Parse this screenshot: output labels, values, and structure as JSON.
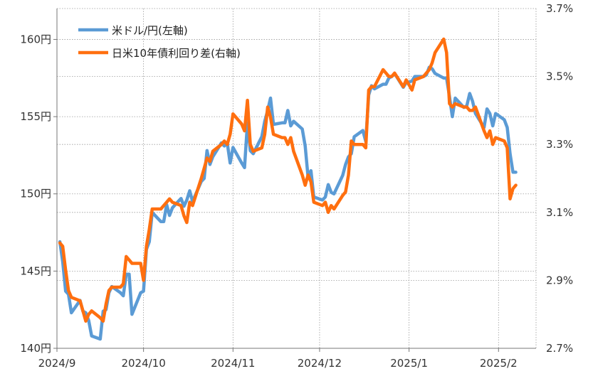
{
  "chart_data": {
    "type": "line",
    "title": "",
    "xlabel": "",
    "x_tick_labels": [
      "2024/9",
      "2024/10",
      "2024/11",
      "2024/12",
      "2025/1",
      "2025/2"
    ],
    "x_tick_dates": [
      "2024-09-01",
      "2024-10-01",
      "2024-11-01",
      "2024-12-01",
      "2025-01-01",
      "2025-02-01"
    ],
    "xlim": [
      "2024-09-01",
      "2025-02-14"
    ],
    "left_axis": {
      "ylim": [
        140,
        162
      ],
      "tick_values": [
        140,
        145,
        150,
        155,
        160
      ],
      "tick_labels": [
        "140円",
        "145円",
        "150円",
        "155円",
        "160円"
      ]
    },
    "right_axis": {
      "ylim": [
        2.7,
        3.7
      ],
      "tick_values": [
        2.7,
        2.9,
        3.1,
        3.3,
        3.5,
        3.7
      ],
      "tick_labels": [
        "2.7%",
        "2.9%",
        "3.1%",
        "3.3%",
        "3.5%",
        "3.7%"
      ]
    },
    "grid": true,
    "legend_position": "top-left",
    "series": [
      {
        "name": "米ドル/円(左軸)",
        "axis": "left",
        "color": "#5b9bd5",
        "points": [
          [
            "2024-09-02",
            146.9
          ],
          [
            "2024-09-03",
            145.6
          ],
          [
            "2024-09-04",
            143.7
          ],
          [
            "2024-09-05",
            143.5
          ],
          [
            "2024-09-06",
            142.3
          ],
          [
            "2024-09-09",
            143.1
          ],
          [
            "2024-09-10",
            142.4
          ],
          [
            "2024-09-11",
            142.3
          ],
          [
            "2024-09-12",
            141.8
          ],
          [
            "2024-09-13",
            140.8
          ],
          [
            "2024-09-16",
            140.6
          ],
          [
            "2024-09-17",
            142.4
          ],
          [
            "2024-09-18",
            142.5
          ],
          [
            "2024-09-19",
            143.6
          ],
          [
            "2024-09-20",
            144.0
          ],
          [
            "2024-09-23",
            143.6
          ],
          [
            "2024-09-24",
            143.4
          ],
          [
            "2024-09-25",
            144.8
          ],
          [
            "2024-09-26",
            144.8
          ],
          [
            "2024-09-27",
            142.2
          ],
          [
            "2024-09-30",
            143.6
          ],
          [
            "2024-10-01",
            143.7
          ],
          [
            "2024-10-02",
            146.4
          ],
          [
            "2024-10-03",
            146.9
          ],
          [
            "2024-10-04",
            148.8
          ],
          [
            "2024-10-07",
            148.2
          ],
          [
            "2024-10-08",
            148.2
          ],
          [
            "2024-10-09",
            149.3
          ],
          [
            "2024-10-10",
            148.6
          ],
          [
            "2024-10-11",
            149.1
          ],
          [
            "2024-10-14",
            149.7
          ],
          [
            "2024-10-15",
            149.2
          ],
          [
            "2024-10-16",
            149.6
          ],
          [
            "2024-10-17",
            150.2
          ],
          [
            "2024-10-18",
            149.5
          ],
          [
            "2024-10-21",
            150.8
          ],
          [
            "2024-10-22",
            151.0
          ],
          [
            "2024-10-23",
            152.8
          ],
          [
            "2024-10-24",
            151.9
          ],
          [
            "2024-10-25",
            152.4
          ],
          [
            "2024-10-28",
            153.3
          ],
          [
            "2024-10-29",
            153.1
          ],
          [
            "2024-10-30",
            153.3
          ],
          [
            "2024-10-31",
            152.0
          ],
          [
            "2024-11-01",
            153.0
          ],
          [
            "2024-11-04",
            152.0
          ],
          [
            "2024-11-05",
            151.7
          ],
          [
            "2024-11-06",
            154.6
          ],
          [
            "2024-11-07",
            152.8
          ],
          [
            "2024-11-08",
            152.6
          ],
          [
            "2024-11-11",
            153.7
          ],
          [
            "2024-11-12",
            154.7
          ],
          [
            "2024-11-13",
            155.4
          ],
          [
            "2024-11-14",
            156.2
          ],
          [
            "2024-11-15",
            154.5
          ],
          [
            "2024-11-18",
            154.6
          ],
          [
            "2024-11-19",
            154.6
          ],
          [
            "2024-11-20",
            155.4
          ],
          [
            "2024-11-21",
            154.4
          ],
          [
            "2024-11-22",
            154.7
          ],
          [
            "2024-11-25",
            154.2
          ],
          [
            "2024-11-26",
            153.1
          ],
          [
            "2024-11-27",
            151.1
          ],
          [
            "2024-11-28",
            151.5
          ],
          [
            "2024-11-29",
            149.8
          ],
          [
            "2024-12-02",
            149.6
          ],
          [
            "2024-12-03",
            149.8
          ],
          [
            "2024-12-04",
            150.6
          ],
          [
            "2024-12-05",
            150.1
          ],
          [
            "2024-12-06",
            150.0
          ],
          [
            "2024-12-09",
            151.2
          ],
          [
            "2024-12-10",
            151.9
          ],
          [
            "2024-12-11",
            152.4
          ],
          [
            "2024-12-12",
            152.6
          ],
          [
            "2024-12-13",
            153.7
          ],
          [
            "2024-12-16",
            154.1
          ],
          [
            "2024-12-17",
            153.4
          ],
          [
            "2024-12-18",
            156.4
          ],
          [
            "2024-12-19",
            157.0
          ],
          [
            "2024-12-20",
            156.8
          ],
          [
            "2024-12-23",
            157.1
          ],
          [
            "2024-12-24",
            157.1
          ],
          [
            "2024-12-25",
            157.5
          ],
          [
            "2024-12-26",
            157.6
          ],
          [
            "2024-12-27",
            157.8
          ],
          [
            "2024-12-30",
            156.9
          ],
          [
            "2024-12-31",
            157.2
          ],
          [
            "2025-01-02",
            157.3
          ],
          [
            "2025-01-03",
            157.6
          ],
          [
            "2025-01-06",
            157.6
          ],
          [
            "2025-01-07",
            157.7
          ],
          [
            "2025-01-08",
            158.2
          ],
          [
            "2025-01-09",
            158.1
          ],
          [
            "2025-01-10",
            157.8
          ],
          [
            "2025-01-13",
            157.5
          ],
          [
            "2025-01-14",
            157.5
          ],
          [
            "2025-01-15",
            156.3
          ],
          [
            "2025-01-16",
            155.0
          ],
          [
            "2025-01-17",
            156.2
          ],
          [
            "2025-01-20",
            155.6
          ],
          [
            "2025-01-21",
            155.7
          ],
          [
            "2025-01-22",
            156.5
          ],
          [
            "2025-01-23",
            156.0
          ],
          [
            "2025-01-24",
            155.2
          ],
          [
            "2025-01-27",
            154.3
          ],
          [
            "2025-01-28",
            155.5
          ],
          [
            "2025-01-29",
            155.2
          ],
          [
            "2025-01-30",
            154.4
          ],
          [
            "2025-01-31",
            155.2
          ],
          [
            "2025-02-03",
            154.8
          ],
          [
            "2025-02-04",
            154.3
          ],
          [
            "2025-02-05",
            152.6
          ],
          [
            "2025-02-06",
            151.4
          ],
          [
            "2025-02-07",
            151.4
          ]
        ]
      },
      {
        "name": "日米10年債利回り差(右軸)",
        "axis": "right",
        "color": "#ff6f0f",
        "points": [
          [
            "2024-09-02",
            3.01
          ],
          [
            "2024-09-03",
            3.0
          ],
          [
            "2024-09-04",
            2.93
          ],
          [
            "2024-09-05",
            2.87
          ],
          [
            "2024-09-06",
            2.85
          ],
          [
            "2024-09-09",
            2.84
          ],
          [
            "2024-09-10",
            2.81
          ],
          [
            "2024-09-11",
            2.78
          ],
          [
            "2024-09-12",
            2.8
          ],
          [
            "2024-09-13",
            2.81
          ],
          [
            "2024-09-16",
            2.79
          ],
          [
            "2024-09-17",
            2.78
          ],
          [
            "2024-09-18",
            2.83
          ],
          [
            "2024-09-19",
            2.87
          ],
          [
            "2024-09-20",
            2.88
          ],
          [
            "2024-09-23",
            2.88
          ],
          [
            "2024-09-24",
            2.89
          ],
          [
            "2024-09-25",
            2.97
          ],
          [
            "2024-09-26",
            2.96
          ],
          [
            "2024-09-27",
            2.95
          ],
          [
            "2024-09-30",
            2.95
          ],
          [
            "2024-10-01",
            2.9
          ],
          [
            "2024-10-02",
            3.0
          ],
          [
            "2024-10-03",
            3.05
          ],
          [
            "2024-10-04",
            3.11
          ],
          [
            "2024-10-07",
            3.11
          ],
          [
            "2024-10-08",
            3.12
          ],
          [
            "2024-10-09",
            3.13
          ],
          [
            "2024-10-10",
            3.14
          ],
          [
            "2024-10-11",
            3.13
          ],
          [
            "2024-10-14",
            3.12
          ],
          [
            "2024-10-15",
            3.09
          ],
          [
            "2024-10-16",
            3.07
          ],
          [
            "2024-10-17",
            3.13
          ],
          [
            "2024-10-18",
            3.12
          ],
          [
            "2024-10-21",
            3.2
          ],
          [
            "2024-10-22",
            3.23
          ],
          [
            "2024-10-23",
            3.26
          ],
          [
            "2024-10-24",
            3.25
          ],
          [
            "2024-10-25",
            3.28
          ],
          [
            "2024-10-28",
            3.3
          ],
          [
            "2024-10-29",
            3.31
          ],
          [
            "2024-10-30",
            3.3
          ],
          [
            "2024-10-31",
            3.33
          ],
          [
            "2024-11-01",
            3.39
          ],
          [
            "2024-11-04",
            3.36
          ],
          [
            "2024-11-05",
            3.34
          ],
          [
            "2024-11-06",
            3.43
          ],
          [
            "2024-11-07",
            3.3
          ],
          [
            "2024-11-08",
            3.28
          ],
          [
            "2024-11-11",
            3.29
          ],
          [
            "2024-11-12",
            3.33
          ],
          [
            "2024-11-13",
            3.41
          ],
          [
            "2024-11-14",
            3.38
          ],
          [
            "2024-11-15",
            3.33
          ],
          [
            "2024-11-18",
            3.32
          ],
          [
            "2024-11-19",
            3.32
          ],
          [
            "2024-11-20",
            3.3
          ],
          [
            "2024-11-21",
            3.32
          ],
          [
            "2024-11-22",
            3.28
          ],
          [
            "2024-11-25",
            3.21
          ],
          [
            "2024-11-26",
            3.18
          ],
          [
            "2024-11-27",
            3.21
          ],
          [
            "2024-11-28",
            3.19
          ],
          [
            "2024-11-29",
            3.13
          ],
          [
            "2024-12-02",
            3.12
          ],
          [
            "2024-12-03",
            3.13
          ],
          [
            "2024-12-04",
            3.1
          ],
          [
            "2024-12-05",
            3.12
          ],
          [
            "2024-12-06",
            3.11
          ],
          [
            "2024-12-09",
            3.15
          ],
          [
            "2024-12-10",
            3.16
          ],
          [
            "2024-12-11",
            3.21
          ],
          [
            "2024-12-12",
            3.31
          ],
          [
            "2024-12-13",
            3.3
          ],
          [
            "2024-12-16",
            3.3
          ],
          [
            "2024-12-17",
            3.29
          ],
          [
            "2024-12-18",
            3.46
          ],
          [
            "2024-12-19",
            3.47
          ],
          [
            "2024-12-20",
            3.47
          ],
          [
            "2024-12-23",
            3.52
          ],
          [
            "2024-12-24",
            3.51
          ],
          [
            "2024-12-25",
            3.5
          ],
          [
            "2024-12-26",
            3.5
          ],
          [
            "2024-12-27",
            3.51
          ],
          [
            "2024-12-30",
            3.47
          ],
          [
            "2024-12-31",
            3.49
          ],
          [
            "2025-01-02",
            3.46
          ],
          [
            "2025-01-03",
            3.49
          ],
          [
            "2025-01-06",
            3.5
          ],
          [
            "2025-01-07",
            3.51
          ],
          [
            "2025-01-08",
            3.52
          ],
          [
            "2025-01-09",
            3.54
          ],
          [
            "2025-01-10",
            3.57
          ],
          [
            "2025-01-13",
            3.61
          ],
          [
            "2025-01-14",
            3.57
          ],
          [
            "2025-01-15",
            3.42
          ],
          [
            "2025-01-16",
            3.41
          ],
          [
            "2025-01-17",
            3.42
          ],
          [
            "2025-01-20",
            3.41
          ],
          [
            "2025-01-21",
            3.41
          ],
          [
            "2025-01-22",
            3.4
          ],
          [
            "2025-01-23",
            3.4
          ],
          [
            "2025-01-24",
            3.41
          ],
          [
            "2025-01-27",
            3.34
          ],
          [
            "2025-01-28",
            3.32
          ],
          [
            "2025-01-29",
            3.34
          ],
          [
            "2025-01-30",
            3.3
          ],
          [
            "2025-01-31",
            3.32
          ],
          [
            "2025-02-03",
            3.31
          ],
          [
            "2025-02-04",
            3.29
          ],
          [
            "2025-02-05",
            3.14
          ],
          [
            "2025-02-06",
            3.17
          ],
          [
            "2025-02-07",
            3.18
          ]
        ]
      }
    ]
  }
}
